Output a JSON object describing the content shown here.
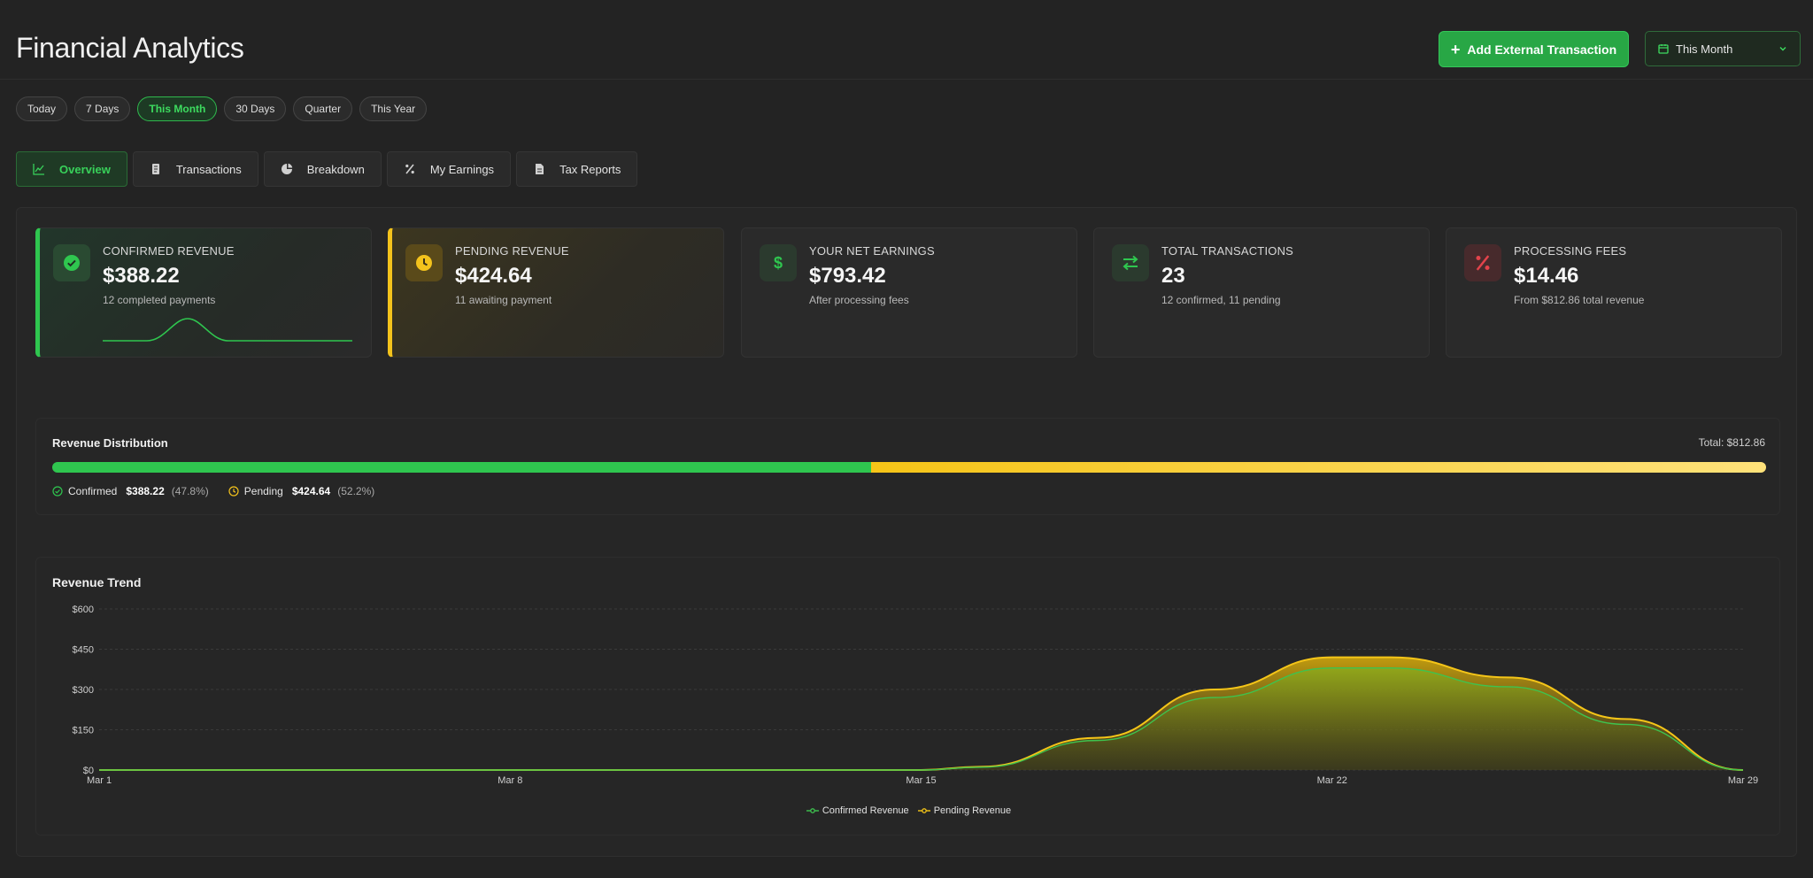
{
  "header": {
    "title": "Financial Analytics",
    "add_button": "Add External Transaction",
    "period_select": "This Month"
  },
  "ranges": [
    {
      "label": "Today",
      "active": false
    },
    {
      "label": "7 Days",
      "active": false
    },
    {
      "label": "This Month",
      "active": true
    },
    {
      "label": "30 Days",
      "active": false
    },
    {
      "label": "Quarter",
      "active": false
    },
    {
      "label": "This Year",
      "active": false
    }
  ],
  "tabs": [
    {
      "label": "Overview",
      "icon": "line-chart-icon",
      "active": true
    },
    {
      "label": "Transactions",
      "icon": "receipt-icon",
      "active": false
    },
    {
      "label": "Breakdown",
      "icon": "pie-chart-icon",
      "active": false
    },
    {
      "label": "My Earnings",
      "icon": "percent-icon",
      "active": false
    },
    {
      "label": "Tax Reports",
      "icon": "document-icon",
      "active": false
    }
  ],
  "cards": [
    {
      "label": "CONFIRMED REVENUE",
      "value": "$388.22",
      "sub": "12 completed payments",
      "icon": "check-circle-icon",
      "accent": "#2fc64f"
    },
    {
      "label": "PENDING REVENUE",
      "value": "$424.64",
      "sub": "11 awaiting payment",
      "icon": "clock-icon",
      "accent": "#f4c31c"
    },
    {
      "label": "YOUR NET EARNINGS",
      "value": "$793.42",
      "sub": "After processing fees",
      "icon": "dollar-icon",
      "accent": "#2fc64f"
    },
    {
      "label": "TOTAL TRANSACTIONS",
      "value": "23",
      "sub": "12 confirmed, 11 pending",
      "icon": "exchange-icon",
      "accent": "#2fc64f"
    },
    {
      "label": "PROCESSING FEES",
      "value": "$14.46",
      "sub": "From $812.86 total revenue",
      "icon": "percent-icon",
      "accent": "#e2434b"
    }
  ],
  "distribution": {
    "title": "Revenue Distribution",
    "total": "Total: $812.86",
    "confirmed_fraction": 0.478,
    "confirmed": {
      "label": "Confirmed",
      "amount": "$388.22",
      "pct": "(47.8%)"
    },
    "pending": {
      "label": "Pending",
      "amount": "$424.64",
      "pct": "(52.2%)"
    }
  },
  "trend": {
    "title": "Revenue Trend"
  },
  "chart_data": {
    "type": "area",
    "x": [
      "Mar 1",
      "Mar 8",
      "Mar 15",
      "Mar 22",
      "Mar 29"
    ],
    "x_days": [
      1,
      8,
      15,
      22,
      29
    ],
    "y_ticks": [
      "$0",
      "$150",
      "$300",
      "$450",
      "$600"
    ],
    "ylim": [
      0,
      600
    ],
    "grid": true,
    "legend": "bottom",
    "series": [
      {
        "name": "Confirmed Revenue",
        "color": "#3ec34f",
        "points": [
          [
            1,
            0
          ],
          [
            15,
            0
          ],
          [
            16,
            10
          ],
          [
            18,
            110
          ],
          [
            20,
            270
          ],
          [
            22,
            380
          ],
          [
            23,
            380
          ],
          [
            25,
            310
          ],
          [
            27,
            170
          ],
          [
            29,
            0
          ]
        ]
      },
      {
        "name": "Pending Revenue",
        "color": "#f5c518",
        "points": [
          [
            1,
            0
          ],
          [
            15,
            0
          ],
          [
            16,
            12
          ],
          [
            18,
            120
          ],
          [
            20,
            300
          ],
          [
            22,
            420
          ],
          [
            23,
            420
          ],
          [
            25,
            345
          ],
          [
            27,
            190
          ],
          [
            29,
            0
          ]
        ]
      }
    ]
  }
}
